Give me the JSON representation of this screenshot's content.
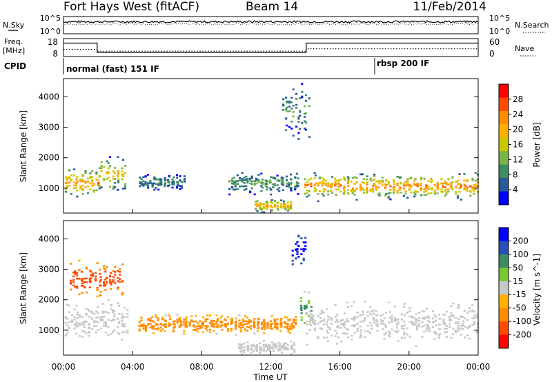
{
  "header": {
    "station": "Fort Hays West (fitACF)",
    "beam": "Beam 14",
    "date": "11/Feb/2014"
  },
  "noise_panel": {
    "left_label": "N.Sky",
    "right_label": "N.Search",
    "left_ticks": [
      "10^5",
      "10^0"
    ],
    "right_ticks": [
      "10^5",
      "10^0"
    ]
  },
  "freq_panel": {
    "left_label_1": "Freq.",
    "left_label_2": "[MHz]",
    "right_label": "Nave",
    "left_ticks": [
      "18",
      "8"
    ],
    "right_ticks": [
      "60",
      "0"
    ],
    "freq_segments": [
      {
        "start_h": 0.0,
        "end_h": 1.95,
        "mhz": 15.5
      },
      {
        "start_h": 1.95,
        "end_h": 14.05,
        "mhz": 10.3
      },
      {
        "start_h": 14.05,
        "end_h": 24.0,
        "mhz": 15.5
      }
    ],
    "nave_segments": [
      {
        "start_h": 0.0,
        "end_h": 1.95,
        "value": 24
      },
      {
        "start_h": 1.95,
        "end_h": 14.05,
        "value": 18
      },
      {
        "start_h": 14.05,
        "end_h": 24.0,
        "value": 26
      }
    ]
  },
  "cpid": {
    "label": "CPID",
    "segments": [
      {
        "name": "normal (fast) 151 IF",
        "start_h": 0.0
      },
      {
        "name": "rbsp 200 IF",
        "start_h": 17.95
      }
    ]
  },
  "chart_data": [
    {
      "type": "heatmap",
      "panel": "power",
      "ylabel": "Slant Range [km]",
      "xlabel": "Time UT",
      "xlim_h": [
        0,
        24
      ],
      "ylim_km": [
        180,
        4600
      ],
      "yticks": [
        1000,
        2000,
        3000,
        4000
      ],
      "xticks": [
        "00:00",
        "04:00",
        "08:00",
        "12:00",
        "16:00",
        "20:00",
        "00:00"
      ],
      "colorbar": {
        "label": "Power [dB]",
        "ticks": [
          "28",
          "24",
          "20",
          "16",
          "12",
          "8",
          "4"
        ],
        "colors_top_to_bottom": [
          "#ff0000",
          "#ff4a00",
          "#ff8c00",
          "#ffb000",
          "#c8c800",
          "#7ab448",
          "#3c8c64",
          "#285a96",
          "#0000ff"
        ]
      },
      "features": [
        {
          "desc": "sea scatter band",
          "start_h": 0.0,
          "end_h": 2.0,
          "center_km": 1200,
          "sigma_km": 250,
          "power_db": 22
        },
        {
          "desc": "echo band",
          "start_h": 2.0,
          "end_h": 3.6,
          "center_km": 1500,
          "sigma_km": 300,
          "power_db": 18
        },
        {
          "desc": "patchy echoes",
          "start_h": 4.3,
          "end_h": 7.0,
          "center_km": 1220,
          "sigma_km": 140,
          "power_db": 9
        },
        {
          "desc": "patchy echoes",
          "start_h": 9.5,
          "end_h": 13.6,
          "center_km": 1200,
          "sigma_km": 180,
          "power_db": 11
        },
        {
          "desc": "near-range echoes",
          "start_h": 11.0,
          "end_h": 13.2,
          "center_km": 450,
          "sigma_km": 120,
          "power_db": 20
        },
        {
          "desc": "sea scatter band",
          "start_h": 13.9,
          "end_h": 24.0,
          "center_km": 1100,
          "sigma_km": 220,
          "power_db": 22
        },
        {
          "desc": "high range echoes",
          "start_h": 12.6,
          "end_h": 14.2,
          "center_km": 3600,
          "sigma_km": 500,
          "power_db": 10
        }
      ]
    },
    {
      "type": "heatmap",
      "panel": "velocity",
      "ylabel": "Slant Range [km]",
      "xlabel": "Time UT",
      "xlim_h": [
        0,
        24
      ],
      "ylim_km": [
        180,
        4600
      ],
      "yticks": [
        1000,
        2000,
        3000,
        4000
      ],
      "xticks": [
        "00:00",
        "04:00",
        "08:00",
        "12:00",
        "16:00",
        "20:00",
        "00:00"
      ],
      "colorbar": {
        "label": "Velocity [m s^-1]",
        "ticks": [
          "200",
          "100",
          "50",
          "15",
          "-15",
          "-50",
          "-100",
          "-200"
        ],
        "colors_top_to_bottom": [
          "#0000ff",
          "#2850b4",
          "#3c8c64",
          "#78c832",
          "#c8c8c8",
          "#ffb000",
          "#ff8c00",
          "#ff4a00",
          "#ff0000"
        ]
      },
      "features": [
        {
          "desc": "ground scatter",
          "start_h": 0.0,
          "end_h": 3.7,
          "center_km": 1350,
          "sigma_km": 350,
          "velocity_ms": 0
        },
        {
          "desc": "negative velocity echoes",
          "start_h": 0.3,
          "end_h": 3.4,
          "center_km": 2700,
          "sigma_km": 300,
          "velocity_ms": -120
        },
        {
          "desc": "negative velocity echoes",
          "start_h": 4.3,
          "end_h": 13.5,
          "center_km": 1220,
          "sigma_km": 160,
          "velocity_ms": -60
        },
        {
          "desc": "ground scatter",
          "start_h": 10.0,
          "end_h": 13.4,
          "center_km": 450,
          "sigma_km": 120,
          "velocity_ms": 0
        },
        {
          "desc": "positive velocity echoes",
          "start_h": 13.6,
          "end_h": 14.3,
          "center_km": 1700,
          "sigma_km": 300,
          "velocity_ms": 40
        },
        {
          "desc": "ground scatter",
          "start_h": 14.0,
          "end_h": 24.0,
          "center_km": 1300,
          "sigma_km": 350,
          "velocity_ms": 0
        },
        {
          "desc": "positive velocity echoes",
          "start_h": 13.2,
          "end_h": 14.0,
          "center_km": 3700,
          "sigma_km": 300,
          "velocity_ms": 220
        }
      ]
    }
  ]
}
